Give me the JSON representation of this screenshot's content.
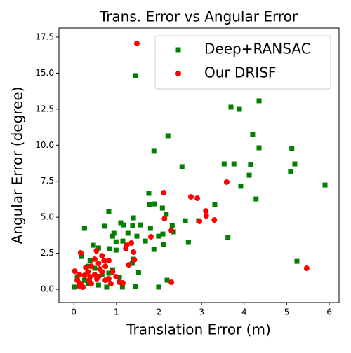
{
  "chart_data": {
    "type": "scatter",
    "title": "Trans. Error vs Angular Error",
    "x_label": "Translation Error (m)",
    "y_label": "Angular Error (degree)",
    "xlim": [
      -0.35,
      6.23
    ],
    "ylim": [
      -0.92,
      18.13
    ],
    "xticks": [
      0,
      1,
      2,
      3,
      4,
      5,
      6
    ],
    "yticks": [
      {
        "value": 0,
        "label": "0.0"
      },
      2.5,
      {
        "value": 5,
        "label": "5.0"
      },
      7.5,
      {
        "value": 10,
        "label": "10.0"
      },
      12.5,
      {
        "value": 15,
        "label": "15.0"
      },
      17.5
    ],
    "legend": "upper right",
    "series": [
      {
        "name": "Deep+RANSAC",
        "color": "#008000",
        "marker": "square",
        "x": [
          1.45,
          4.35,
          3.69,
          3.89,
          2.21,
          4.2,
          4.35,
          5.12,
          1.88,
          2.54,
          3.53,
          3.76,
          4.15,
          5.19,
          5.09,
          4.12,
          3.92,
          5.9,
          4.28,
          1.76,
          3.31,
          1.78,
          1.89,
          2.08,
          2.17,
          0.82,
          1.4,
          2.62,
          2.93,
          0.25,
          0.72,
          1.1,
          1.17,
          1.57,
          1.38,
          2.31,
          1.8,
          2.09,
          2.34,
          1.99,
          1.27,
          1.48,
          1.68,
          2.69,
          3.62,
          0.91,
          0.94,
          0.99,
          1.15,
          2.11,
          1.88,
          0.46,
          0.58,
          0.84,
          0.99,
          1.4,
          1.37,
          1.52,
          5.24,
          1.45,
          1.99,
          2.19,
          1.14,
          0.77,
          0.25,
          0.12,
          0.02,
          0.18,
          0.38,
          0.33,
          0.49,
          0.66,
          0.82,
          0.08,
          0.33,
          0.58,
          0.91,
          1.07
        ],
        "values": [
          14.83,
          13.08,
          12.64,
          12.49,
          10.65,
          10.74,
          9.82,
          9.77,
          9.58,
          8.51,
          8.7,
          8.7,
          8.65,
          8.7,
          8.17,
          7.92,
          7.15,
          7.24,
          6.27,
          6.66,
          5.88,
          5.88,
          5.93,
          5.64,
          5.2,
          5.4,
          4.96,
          4.76,
          4.76,
          4.23,
          4.38,
          4.62,
          4.47,
          4.47,
          4.42,
          4.42,
          4.23,
          3.84,
          3.99,
          3.69,
          3.89,
          3.69,
          3.35,
          3.26,
          3.6,
          3.69,
          3.89,
          3.3,
          3.35,
          3.11,
          2.77,
          3.06,
          2.87,
          2.82,
          2.72,
          2.09,
          1.8,
          1.17,
          1.94,
          0.19,
          0.15,
          0.63,
          0.15,
          0.15,
          0.63,
          0.44,
          0.15,
          2.28,
          1.99,
          1.6,
          1.46,
          1.02,
          1.12,
          0.88,
          0.39,
          0.29,
          1.36,
          0.83
        ]
      },
      {
        "name": "Our DRISF",
        "color": "#ff0000",
        "marker": "circle",
        "x": [
          1.48,
          3.59,
          2.11,
          2.75,
          2.9,
          3.1,
          3.11,
          3.3,
          2.95,
          2.13,
          2.29,
          1.81,
          1.35,
          1.24,
          1.4,
          1.22,
          1.29,
          1.42,
          5.47,
          2.29,
          0.16,
          0.53,
          0.02,
          0.08,
          0.16,
          0.25,
          0.33,
          0.41,
          0.49,
          0.58,
          0.66,
          0.74,
          0.82,
          0.91,
          0.99,
          1.07,
          1.15,
          0.74,
          0.58,
          0.41,
          0.21,
          0.12,
          0.38,
          0.66,
          0.49,
          0.82,
          0.28,
          0.61,
          0.71,
          0.54,
          0.87,
          0.36,
          0.13
        ],
        "values": [
          17.06,
          7.44,
          6.71,
          6.42,
          6.32,
          5.44,
          5.1,
          4.81,
          4.72,
          4.91,
          4.08,
          3.65,
          3.21,
          3.06,
          2.58,
          2.82,
          1.7,
          2.04,
          1.46,
          0.49,
          2.53,
          2.67,
          1.26,
          0.63,
          0.39,
          0.97,
          1.22,
          1.6,
          2.09,
          1.8,
          2.33,
          1.6,
          1.99,
          1.22,
          0.88,
          0.49,
          0.44,
          0.63,
          0.88,
          0.39,
          0.15,
          0.24,
          0.88,
          1.22,
          1.02,
          0.73,
          1.51,
          1.41,
          1.99,
          0.73,
          0.39,
          0.63,
          1.02
        ]
      }
    ]
  }
}
